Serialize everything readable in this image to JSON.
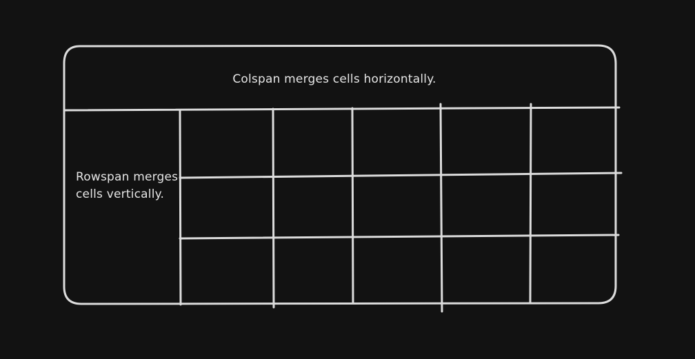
{
  "diagram": {
    "colspan_label": "Colspan merges cells horizontally.",
    "rowspan_label_line1": "Rowspan merges",
    "rowspan_label_line2": "cells vertically.",
    "colors": {
      "background": "#121212",
      "line": "#dcdcdc",
      "text": "#e6e6e6"
    }
  }
}
